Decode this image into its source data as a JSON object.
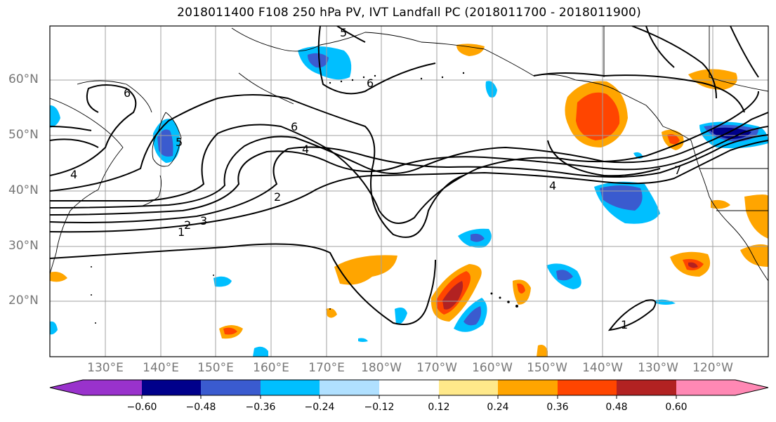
{
  "title": "2018011400 F108 250 hPa PV, IVT Landfall PC (2018011700 - 2018011900)",
  "lat_labels": [
    "60°N",
    "50°N",
    "40°N",
    "30°N",
    "20°N"
  ],
  "lon_labels": [
    "130°E",
    "140°E",
    "150°E",
    "160°E",
    "170°E",
    "180°W",
    "170°W",
    "160°W",
    "150°W",
    "140°W",
    "130°W",
    "120°W"
  ],
  "contour_labels": [
    "1",
    "2",
    "3",
    "4",
    "5",
    "6",
    "6",
    "4",
    "7",
    "1",
    "2",
    "4",
    "5",
    "6"
  ],
  "colorbar": {
    "tick_labels": [
      "−0.60",
      "−0.48",
      "−0.36",
      "−0.24",
      "−0.12",
      "0.12",
      "0.24",
      "0.36",
      "0.48",
      "0.60"
    ],
    "colors": [
      "#9932cc",
      "#00008b",
      "#3a5bcf",
      "#00bfff",
      "#b0e0ff",
      "#ffffff",
      "#ffe98a",
      "#ffa500",
      "#ff4500",
      "#b22222",
      "#ff88b4"
    ]
  },
  "anomaly_colors": {
    "neg_light": "#00bfff",
    "neg_mid": "#3a5bcf",
    "neg_dark": "#00008b",
    "pos_light": "#ffe98a",
    "pos_mid": "#ffa500",
    "pos_high": "#ff4500",
    "pos_dark": "#b22222"
  }
}
